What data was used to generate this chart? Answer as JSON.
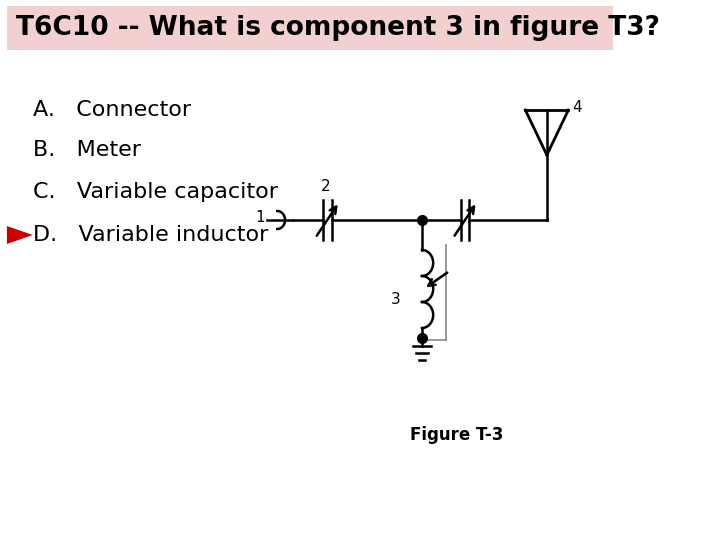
{
  "title": "T6C10 -- What is component 3 in figure T3?",
  "title_bg": "#f2d0d0",
  "bg_color": "#ffffff",
  "options": [
    "A.   Connector",
    "B.   Meter",
    "C.   Variable capacitor",
    "D.   Variable inductor"
  ],
  "answer_index": 3,
  "arrow_color": "#cc0000",
  "figure_label": "Figure T-3",
  "title_fontsize": 19,
  "option_fontsize": 16
}
